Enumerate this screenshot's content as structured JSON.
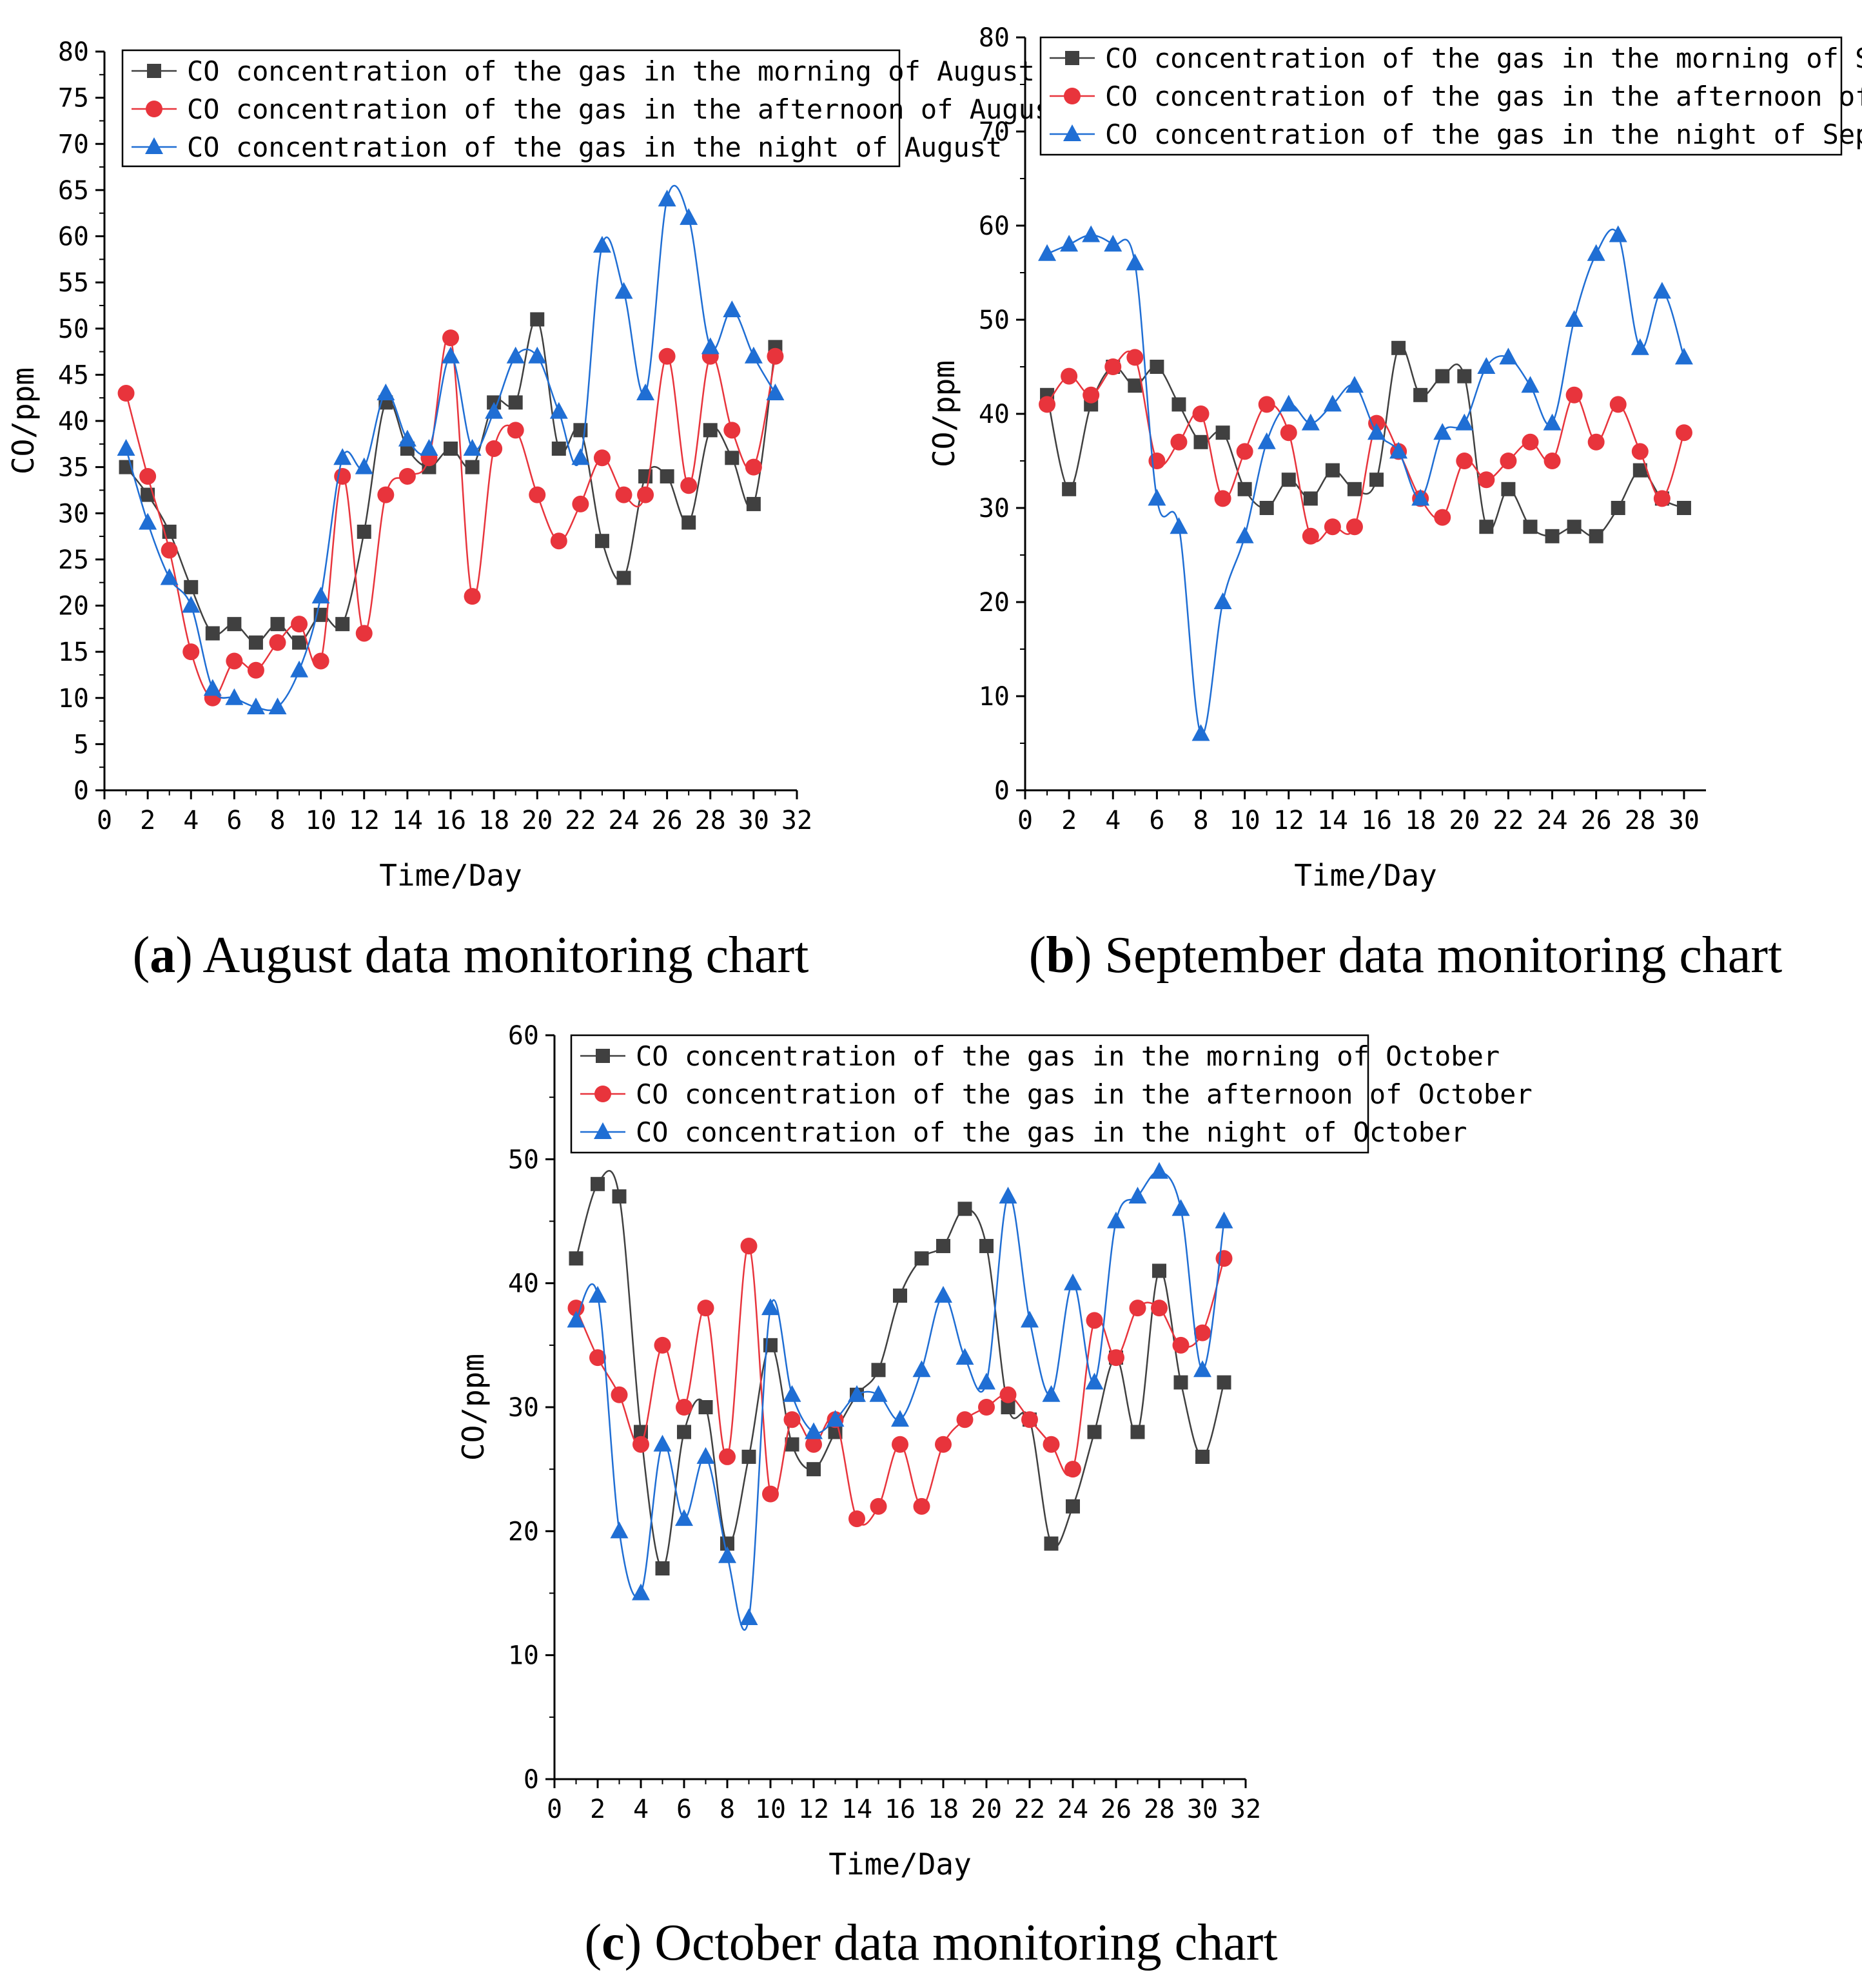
{
  "colors": {
    "morning": "#404040",
    "afternoon": "#e8343c",
    "night": "#1f6ed4"
  },
  "chart_data": [
    {
      "id": "a",
      "type": "line",
      "caption_letter": "a",
      "caption_text": " August data monitoring chart",
      "xlabel": "Time/Day",
      "ylabel": "CO/ppm",
      "xlim": [
        0,
        32
      ],
      "ylim": [
        0,
        80
      ],
      "xticks": [
        0,
        2,
        4,
        6,
        8,
        10,
        12,
        14,
        16,
        18,
        20,
        22,
        24,
        26,
        28,
        30,
        32
      ],
      "yticks": [
        0,
        5,
        10,
        15,
        20,
        25,
        30,
        35,
        40,
        45,
        50,
        55,
        60,
        65,
        70,
        75,
        80
      ],
      "x": [
        1,
        2,
        3,
        4,
        5,
        6,
        7,
        8,
        9,
        10,
        11,
        12,
        13,
        14,
        15,
        16,
        17,
        18,
        19,
        20,
        21,
        22,
        23,
        24,
        25,
        26,
        27,
        28,
        29,
        30,
        31
      ],
      "series": [
        {
          "key": "morning",
          "marker": "square",
          "name": "CO concentration of the gas in the morning of August",
          "values": [
            35,
            32,
            28,
            22,
            17,
            18,
            16,
            18,
            16,
            19,
            18,
            28,
            42,
            37,
            35,
            37,
            35,
            42,
            42,
            51,
            37,
            39,
            27,
            23,
            34,
            34,
            29,
            39,
            36,
            31,
            48
          ]
        },
        {
          "key": "afternoon",
          "marker": "circle",
          "name": "CO concentration of the gas in the afternoon of August",
          "values": [
            43,
            34,
            26,
            15,
            10,
            14,
            13,
            16,
            18,
            14,
            34,
            17,
            32,
            34,
            36,
            49,
            21,
            37,
            39,
            32,
            27,
            31,
            36,
            32,
            32,
            47,
            33,
            47,
            39,
            35,
            47
          ]
        },
        {
          "key": "night",
          "marker": "triangle",
          "name": "CO concentration of the gas in the night of August",
          "values": [
            37,
            29,
            23,
            20,
            11,
            10,
            9,
            9,
            13,
            21,
            36,
            35,
            43,
            38,
            37,
            47,
            37,
            41,
            47,
            47,
            41,
            36,
            59,
            54,
            43,
            64,
            62,
            48,
            52,
            47,
            43
          ]
        }
      ]
    },
    {
      "id": "b",
      "type": "line",
      "caption_letter": "b",
      "caption_text": " September data monitoring chart",
      "xlabel": "Time/Day",
      "ylabel": "CO/ppm",
      "xlim": [
        0,
        31
      ],
      "ylim": [
        0,
        80
      ],
      "xticks": [
        0,
        2,
        4,
        6,
        8,
        10,
        12,
        14,
        16,
        18,
        20,
        22,
        24,
        26,
        28,
        30
      ],
      "yticks": [
        0,
        10,
        20,
        30,
        40,
        50,
        60,
        70,
        80
      ],
      "x": [
        1,
        2,
        3,
        4,
        5,
        6,
        7,
        8,
        9,
        10,
        11,
        12,
        13,
        14,
        15,
        16,
        17,
        18,
        19,
        20,
        21,
        22,
        23,
        24,
        25,
        26,
        27,
        28,
        29,
        30
      ],
      "series": [
        {
          "key": "morning",
          "marker": "square",
          "name": "CO concentration of the gas in the morning of September",
          "values": [
            42,
            32,
            41,
            45,
            43,
            45,
            41,
            37,
            38,
            32,
            30,
            33,
            31,
            34,
            32,
            33,
            47,
            42,
            44,
            44,
            28,
            32,
            28,
            27,
            28,
            27,
            30,
            34,
            31,
            30
          ]
        },
        {
          "key": "afternoon",
          "marker": "circle",
          "name": "CO concentration of the gas in the afternoon of September",
          "values": [
            41,
            44,
            42,
            45,
            46,
            35,
            37,
            40,
            31,
            36,
            41,
            38,
            27,
            28,
            28,
            39,
            36,
            31,
            29,
            35,
            33,
            35,
            37,
            35,
            42,
            37,
            41,
            36,
            31,
            38
          ]
        },
        {
          "key": "night",
          "marker": "triangle",
          "name": "CO concentration of the gas in the night of September",
          "values": [
            57,
            58,
            59,
            58,
            56,
            31,
            28,
            6,
            20,
            27,
            37,
            41,
            39,
            41,
            43,
            38,
            36,
            31,
            38,
            39,
            45,
            46,
            43,
            39,
            50,
            57,
            59,
            47,
            53,
            46
          ]
        }
      ]
    },
    {
      "id": "c",
      "type": "line",
      "caption_letter": "c",
      "caption_text": " October data monitoring chart",
      "xlabel": "Time/Day",
      "ylabel": "CO/ppm",
      "xlim": [
        0,
        32
      ],
      "ylim": [
        0,
        60
      ],
      "xticks": [
        0,
        2,
        4,
        6,
        8,
        10,
        12,
        14,
        16,
        18,
        20,
        22,
        24,
        26,
        28,
        30,
        32
      ],
      "yticks": [
        0,
        10,
        20,
        30,
        40,
        50,
        60
      ],
      "x": [
        1,
        2,
        3,
        4,
        5,
        6,
        7,
        8,
        9,
        10,
        11,
        12,
        13,
        14,
        15,
        16,
        17,
        18,
        19,
        20,
        21,
        22,
        23,
        24,
        25,
        26,
        27,
        28,
        29,
        30,
        31
      ],
      "series": [
        {
          "key": "morning",
          "marker": "square",
          "name": "CO concentration of the gas in the morning of October",
          "values": [
            42,
            48,
            47,
            28,
            17,
            28,
            30,
            19,
            26,
            35,
            27,
            25,
            28,
            31,
            33,
            39,
            42,
            43,
            46,
            43,
            30,
            29,
            19,
            22,
            28,
            34,
            28,
            41,
            32,
            26,
            32
          ]
        },
        {
          "key": "afternoon",
          "marker": "circle",
          "name": "CO concentration of the gas in the afternoon of October",
          "values": [
            38,
            34,
            31,
            27,
            35,
            30,
            38,
            26,
            43,
            23,
            29,
            27,
            29,
            21,
            22,
            27,
            22,
            27,
            29,
            30,
            31,
            29,
            27,
            25,
            37,
            34,
            38,
            38,
            35,
            36,
            42
          ]
        },
        {
          "key": "night",
          "marker": "triangle",
          "name": "CO concentration of the gas in the night of October",
          "values": [
            37,
            39,
            20,
            15,
            27,
            21,
            26,
            18,
            13,
            38,
            31,
            28,
            29,
            31,
            31,
            29,
            33,
            39,
            34,
            32,
            47,
            37,
            31,
            40,
            32,
            45,
            47,
            49,
            46,
            33,
            45
          ]
        }
      ]
    }
  ]
}
